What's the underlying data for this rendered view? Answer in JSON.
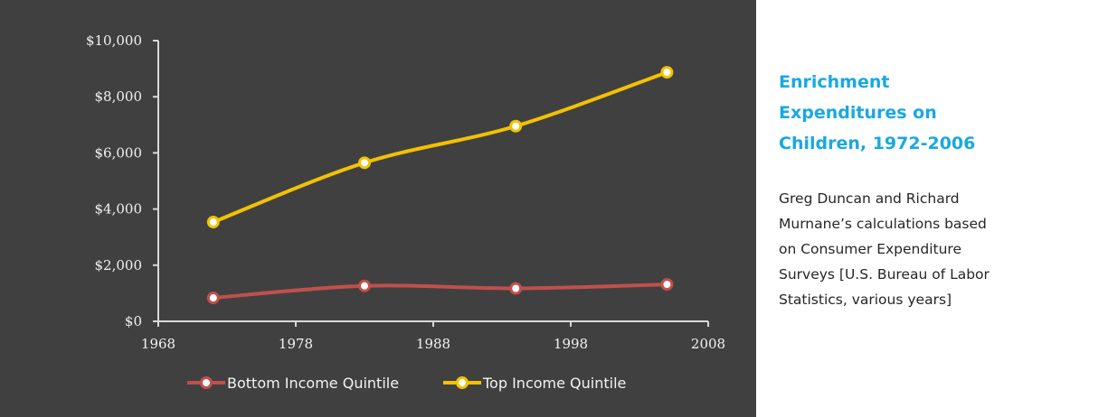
{
  "chart_data": {
    "type": "line",
    "x": [
      1972,
      1983,
      1994,
      2005
    ],
    "series": [
      {
        "name": "Bottom Income Quintile",
        "values": [
          835,
          1263,
          1173,
          1315
        ],
        "color": "#c0504d"
      },
      {
        "name": "Top Income Quintile",
        "values": [
          3536,
          5649,
          6953,
          8872
        ],
        "color": "#f2c200"
      }
    ],
    "xlim": [
      1968,
      2008
    ],
    "ylim": [
      0,
      10000
    ],
    "x_ticks": [
      1968,
      1978,
      1988,
      1998,
      2008
    ],
    "x_tick_labels": [
      "1968",
      "1978",
      "1988",
      "1998",
      "2008"
    ],
    "y_ticks": [
      0,
      2000,
      4000,
      6000,
      8000,
      10000
    ],
    "y_tick_labels": [
      "$0",
      "$2,000",
      "$4,000",
      "$6,000",
      "$8,000",
      "$10,000"
    ],
    "grid": false,
    "legend_position": "bottom",
    "background_color": "#404040"
  },
  "side_panel": {
    "title": "Enrichment Expenditures on Children, 1972-2006",
    "caption": "Greg Duncan and Richard Murnane’s calculations based on Consumer Expenditure Surveys [U.S. Bureau of Labor Statistics, various years]"
  }
}
